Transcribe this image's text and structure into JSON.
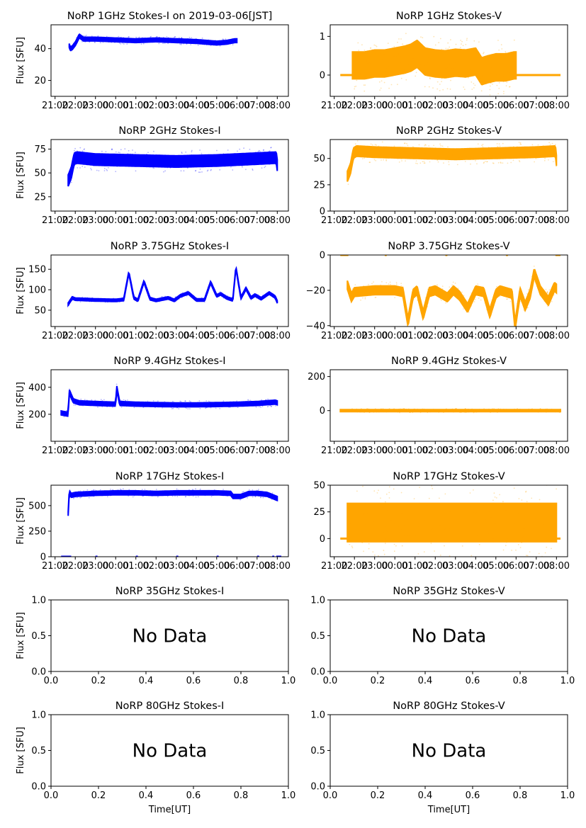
{
  "chart_data": [
    {
      "id": "1ghz-i",
      "type": "scatter",
      "title": "NoRP 1GHz Stokes-I on 2019-03-06[JST]",
      "ylabel": "Flux [SFU]",
      "xlabel": "",
      "color": "#0000ff",
      "ylim": [
        10,
        55
      ],
      "yticks": [
        20,
        40
      ],
      "xlim": [
        20.8,
        32.55
      ],
      "xticks": [
        "21:00",
        "22:00",
        "23:00",
        "00:00",
        "01:00",
        "02:00",
        "03:00",
        "04:00",
        "05:00",
        "06:00",
        "07:00",
        "08:00"
      ],
      "series": [
        {
          "name": "Stokes-I",
          "t": [
            21.7,
            21.75,
            21.85,
            22.0,
            22.2,
            22.4,
            23,
            24,
            25,
            26,
            27,
            28,
            29,
            29.5,
            29.9,
            30.0
          ],
          "v": [
            42,
            40,
            40.5,
            43,
            48,
            46,
            46,
            45.5,
            45,
            45.5,
            45,
            44.5,
            43.5,
            44,
            45,
            45
          ],
          "spread": 1.2,
          "start": 21.7,
          "end": 30.0
        }
      ]
    },
    {
      "id": "1ghz-v",
      "type": "scatter",
      "title": "NoRP 1GHz Stokes-V",
      "ylabel": "",
      "xlabel": "",
      "color": "#ffa500",
      "ylim": [
        -0.55,
        1.3
      ],
      "yticks": [
        0,
        1
      ],
      "xlim": [
        20.8,
        32.55
      ],
      "xticks": [
        "21:00",
        "22:00",
        "23:00",
        "00:00",
        "01:00",
        "02:00",
        "03:00",
        "04:00",
        "05:00",
        "06:00",
        "07:00",
        "08:00"
      ],
      "series": [
        {
          "name": "Stokes-V",
          "t": [
            21.9,
            22.5,
            23,
            23.5,
            24,
            24.5,
            24.8,
            25.1,
            25.5,
            26,
            26.5,
            27,
            27.5,
            28,
            28.3,
            28.6,
            29,
            29.5,
            29.9
          ],
          "v": [
            0.25,
            0.25,
            0.3,
            0.3,
            0.35,
            0.4,
            0.45,
            0.55,
            0.35,
            0.3,
            0.28,
            0.32,
            0.3,
            0.35,
            0.1,
            0.15,
            0.2,
            0.2,
            0.25
          ],
          "spread": 0.35,
          "start": 21.9,
          "end": 30.0,
          "zero_segments": [
            [
              21.3,
              21.9
            ],
            [
              30.0,
              32.2
            ]
          ]
        }
      ]
    },
    {
      "id": "2ghz-i",
      "type": "scatter",
      "title": "NoRP 2GHz Stokes-I",
      "ylabel": "Flux [SFU]",
      "xlabel": "",
      "color": "#0000ff",
      "ylim": [
        10,
        85
      ],
      "yticks": [
        25,
        50,
        75
      ],
      "xlim": [
        20.8,
        32.55
      ],
      "xticks": [
        "21:00",
        "22:00",
        "23:00",
        "00:00",
        "01:00",
        "02:00",
        "03:00",
        "04:00",
        "05:00",
        "06:00",
        "07:00",
        "08:00"
      ],
      "series": [
        {
          "name": "Stokes-I",
          "t": [
            21.65,
            21.8,
            21.95,
            22.1,
            23,
            25,
            27,
            29,
            31,
            31.95,
            32.0
          ],
          "v": [
            42,
            50,
            65,
            66,
            64,
            63,
            62,
            63,
            65,
            66,
            58
          ],
          "spread": 6,
          "start": 21.65,
          "end": 32.0
        }
      ]
    },
    {
      "id": "2ghz-v",
      "type": "scatter",
      "title": "NoRP 2GHz Stokes-V",
      "ylabel": "",
      "xlabel": "",
      "color": "#ffa500",
      "ylim": [
        0,
        68
      ],
      "yticks": [
        0,
        25,
        50
      ],
      "xlim": [
        20.8,
        32.55
      ],
      "xticks": [
        "21:00",
        "22:00",
        "23:00",
        "00:00",
        "01:00",
        "02:00",
        "03:00",
        "04:00",
        "05:00",
        "06:00",
        "07:00",
        "08:00"
      ],
      "series": [
        {
          "name": "Stokes-V",
          "t": [
            21.65,
            21.8,
            21.95,
            22.1,
            23,
            25,
            27,
            29,
            31,
            31.95,
            32.0
          ],
          "v": [
            33,
            40,
            55,
            57,
            56,
            55,
            54,
            55,
            56,
            57,
            48
          ],
          "spread": 5,
          "start": 21.65,
          "end": 32.0
        }
      ]
    },
    {
      "id": "375ghz-i",
      "type": "scatter",
      "title": "NoRP 3.75GHz Stokes-I",
      "ylabel": "Flux [SFU]",
      "xlabel": "",
      "color": "#0000ff",
      "ylim": [
        10,
        185
      ],
      "yticks": [
        50,
        100,
        150
      ],
      "xlim": [
        20.8,
        32.55
      ],
      "xticks": [
        "21:00",
        "22:00",
        "23:00",
        "00:00",
        "01:00",
        "02:00",
        "03:00",
        "04:00",
        "05:00",
        "06:00",
        "07:00",
        "08:00"
      ],
      "series": [
        {
          "name": "Stokes-I",
          "t": [
            21.65,
            21.85,
            22,
            23,
            24,
            24.4,
            24.65,
            24.9,
            25.1,
            25.4,
            25.7,
            26,
            26.6,
            26.9,
            27.2,
            27.6,
            28,
            28.4,
            28.7,
            29,
            29.2,
            29.5,
            29.8,
            29.95,
            30.2,
            30.45,
            30.7,
            30.9,
            31.2,
            31.6,
            31.9,
            32.0
          ],
          "v": [
            65,
            80,
            77,
            75,
            74,
            76,
            142,
            80,
            74,
            120,
            78,
            74,
            80,
            74,
            85,
            92,
            75,
            75,
            118,
            85,
            90,
            80,
            75,
            155,
            80,
            103,
            80,
            87,
            78,
            92,
            82,
            70
          ],
          "spread": 3,
          "start": 21.65,
          "end": 32.0
        }
      ]
    },
    {
      "id": "375ghz-v",
      "type": "scatter",
      "title": "NoRP 3.75GHz Stokes-V",
      "ylabel": "",
      "xlabel": "",
      "color": "#ffa500",
      "ylim": [
        -40.5,
        0
      ],
      "yticks": [
        -40,
        -20,
        0
      ],
      "xlim": [
        20.8,
        32.55
      ],
      "xticks": [
        "21:00",
        "22:00",
        "23:00",
        "00:00",
        "01:00",
        "02:00",
        "03:00",
        "04:00",
        "05:00",
        "06:00",
        "07:00",
        "08:00"
      ],
      "series": [
        {
          "name": "Stokes-V",
          "t": [
            21.65,
            21.85,
            22,
            23,
            24,
            24.4,
            24.65,
            24.9,
            25.1,
            25.4,
            25.7,
            26,
            26.6,
            26.9,
            27.2,
            27.6,
            28,
            28.4,
            28.7,
            29,
            29.2,
            29.5,
            29.8,
            29.95,
            30.2,
            30.45,
            30.7,
            30.9,
            31.2,
            31.6,
            31.9,
            32.0
          ],
          "v": [
            -17,
            -24,
            -21,
            -20,
            -20,
            -21,
            -38,
            -22,
            -20,
            -34,
            -21,
            -20,
            -24,
            -20,
            -23,
            -30,
            -20,
            -21,
            -33,
            -22,
            -20,
            -21,
            -22,
            -40,
            -21,
            -29,
            -22,
            -10,
            -20,
            -26,
            -18,
            -19
          ],
          "spread": 2.5,
          "start": 21.65,
          "end": 32.0,
          "zero_segments": [
            [
              21.3,
              21.7
            ],
            [
              23.5,
              23.6
            ],
            [
              26.5,
              26.6
            ],
            [
              29.5,
              29.6
            ],
            [
              31.95,
              32.2
            ]
          ]
        }
      ]
    },
    {
      "id": "94ghz-i",
      "type": "scatter",
      "title": "NoRP 9.4GHz Stokes-I",
      "ylabel": "Flux [SFU]",
      "xlabel": "",
      "color": "#0000ff",
      "ylim": [
        0,
        530
      ],
      "yticks": [
        200,
        400
      ],
      "xlim": [
        20.8,
        32.55
      ],
      "xticks": [
        "21:00",
        "22:00",
        "23:00",
        "00:00",
        "01:00",
        "02:00",
        "03:00",
        "04:00",
        "05:00",
        "06:00",
        "07:00",
        "08:00"
      ],
      "series": [
        {
          "name": "Stokes-I",
          "t": [
            21.3,
            21.65,
            21.7,
            21.9,
            22.2,
            23,
            24,
            24.05,
            24.2,
            25,
            26,
            27,
            28,
            29,
            30,
            31,
            31.9,
            32.0
          ],
          "v": [
            210,
            200,
            370,
            300,
            285,
            280,
            275,
            400,
            280,
            275,
            272,
            270,
            270,
            272,
            275,
            280,
            290,
            285
          ],
          "spread": 15,
          "start": 21.3,
          "end": 32.0
        }
      ]
    },
    {
      "id": "94ghz-v",
      "type": "scatter",
      "title": "NoRP 9.4GHz Stokes-V",
      "ylabel": "",
      "xlabel": "",
      "color": "#ffa500",
      "ylim": [
        -180,
        240
      ],
      "yticks": [
        0,
        200
      ],
      "xlim": [
        20.8,
        32.55
      ],
      "xticks": [
        "21:00",
        "22:00",
        "23:00",
        "00:00",
        "01:00",
        "02:00",
        "03:00",
        "04:00",
        "05:00",
        "06:00",
        "07:00",
        "08:00"
      ],
      "series": [
        {
          "name": "Stokes-V",
          "t": [
            21.3,
            32.2
          ],
          "v": [
            0,
            0
          ],
          "spread": 6,
          "start": 21.3,
          "end": 32.2
        }
      ]
    },
    {
      "id": "17ghz-i",
      "type": "scatter",
      "title": "NoRP 17GHz Stokes-I",
      "ylabel": "Flux [SFU]",
      "xlabel": "",
      "color": "#0000ff",
      "ylim": [
        0,
        700
      ],
      "yticks": [
        0,
        250,
        500
      ],
      "xlim": [
        20.8,
        32.55
      ],
      "xticks": [
        "21:00",
        "22:00",
        "23:00",
        "00:00",
        "01:00",
        "02:00",
        "03:00",
        "04:00",
        "05:00",
        "06:00",
        "07:00",
        "08:00"
      ],
      "series": [
        {
          "name": "Stokes-I",
          "t": [
            21.65,
            21.7,
            21.8,
            22,
            23,
            24,
            25,
            26,
            27,
            28,
            29,
            29.7,
            29.8,
            30.2,
            30.6,
            31,
            31.5,
            32.0
          ],
          "v": [
            420,
            630,
            600,
            610,
            620,
            625,
            625,
            620,
            625,
            625,
            625,
            620,
            590,
            590,
            620,
            620,
            610,
            570
          ],
          "spread": 20,
          "start": 21.65,
          "end": 32.0,
          "zero_segments": [
            [
              21.3,
              21.8
            ],
            [
              23,
              23.1
            ],
            [
              25,
              25.1
            ],
            [
              27,
              27.1
            ],
            [
              29,
              29.1
            ],
            [
              31,
              31.1
            ],
            [
              31.75,
              31.85
            ],
            [
              31.95,
              32.2
            ]
          ]
        }
      ]
    },
    {
      "id": "17ghz-v",
      "type": "scatter",
      "title": "NoRP 17GHz Stokes-V",
      "ylabel": "",
      "xlabel": "",
      "color": "#ffa500",
      "ylim": [
        -17,
        50
      ],
      "yticks": [
        0,
        25,
        50
      ],
      "xlim": [
        20.8,
        32.55
      ],
      "xticks": [
        "21:00",
        "22:00",
        "23:00",
        "00:00",
        "01:00",
        "02:00",
        "03:00",
        "04:00",
        "05:00",
        "06:00",
        "07:00",
        "08:00"
      ],
      "series": [
        {
          "name": "Stokes-V",
          "t": [
            21.65,
            32.0
          ],
          "v": [
            15,
            15
          ],
          "spread": 18,
          "start": 21.65,
          "end": 32.0,
          "zero_segments": [
            [
              21.3,
              21.65
            ],
            [
              32.0,
              32.2
            ]
          ]
        }
      ]
    },
    {
      "id": "35ghz-i",
      "type": "empty",
      "title": "NoRP 35GHz Stokes-I",
      "ylabel": "Flux [SFU]",
      "xlabel": "",
      "annotation": "No Data",
      "xlim": [
        0,
        1
      ],
      "ylim": [
        0,
        1
      ],
      "xticks": [
        "0.0",
        "0.2",
        "0.4",
        "0.6",
        "0.8",
        "1.0"
      ],
      "yticks": [
        "0.0",
        "0.5",
        "1.0"
      ]
    },
    {
      "id": "35ghz-v",
      "type": "empty",
      "title": "NoRP 35GHz Stokes-V",
      "ylabel": "",
      "xlabel": "",
      "annotation": "No Data",
      "xlim": [
        0,
        1
      ],
      "ylim": [
        0,
        1
      ],
      "xticks": [
        "0.0",
        "0.2",
        "0.4",
        "0.6",
        "0.8",
        "1.0"
      ],
      "yticks": [
        "0.0",
        "0.5",
        "1.0"
      ]
    },
    {
      "id": "80ghz-i",
      "type": "empty",
      "title": "NoRP 80GHz Stokes-I",
      "ylabel": "Flux [SFU]",
      "xlabel": "Time[UT]",
      "annotation": "No Data",
      "xlim": [
        0,
        1
      ],
      "ylim": [
        0,
        1
      ],
      "xticks": [
        "0.0",
        "0.2",
        "0.4",
        "0.6",
        "0.8",
        "1.0"
      ],
      "yticks": [
        "0.0",
        "0.5",
        "1.0"
      ]
    },
    {
      "id": "80ghz-v",
      "type": "empty",
      "title": "NoRP 80GHz Stokes-V",
      "ylabel": "",
      "xlabel": "Time[UT]",
      "annotation": "No Data",
      "xlim": [
        0,
        1
      ],
      "ylim": [
        0,
        1
      ],
      "xticks": [
        "0.0",
        "0.2",
        "0.4",
        "0.6",
        "0.8",
        "1.0"
      ],
      "yticks": [
        "0.0",
        "0.5",
        "1.0"
      ]
    }
  ]
}
